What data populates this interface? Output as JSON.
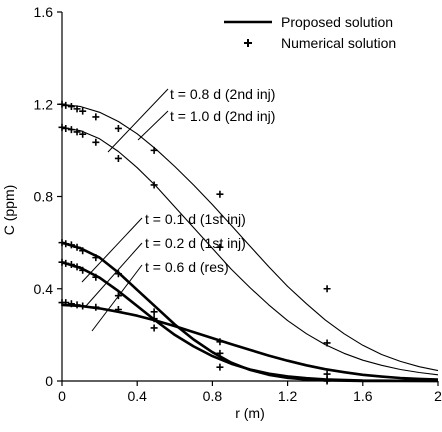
{
  "chart_data": {
    "type": "line",
    "xlabel": "r (m)",
    "ylabel": "C (ppm)",
    "xlim": [
      0,
      2
    ],
    "ylim": [
      0,
      1.6
    ],
    "xticks": [
      "0",
      "0.4",
      "0.8",
      "1.2",
      "1.6",
      "2"
    ],
    "yticks": [
      "0",
      "0.4",
      "0.8",
      "1.2",
      "1.6"
    ],
    "grid": false,
    "legend": {
      "placement": "top-right",
      "entries": [
        {
          "label": "Proposed solution",
          "marker": "line"
        },
        {
          "label": "Numerical solution",
          "marker": "plus"
        }
      ]
    },
    "series": [
      {
        "name": "t = 0.8 d (2nd inj)",
        "line_weight": "thin",
        "curve": [
          [
            0,
            1.2
          ],
          [
            0.1,
            1.19
          ],
          [
            0.2,
            1.165
          ],
          [
            0.3,
            1.125
          ],
          [
            0.4,
            1.072
          ],
          [
            0.5,
            1.005
          ],
          [
            0.6,
            0.93
          ],
          [
            0.7,
            0.85
          ],
          [
            0.8,
            0.765
          ],
          [
            0.9,
            0.675
          ],
          [
            1.0,
            0.585
          ],
          [
            1.1,
            0.495
          ],
          [
            1.2,
            0.41
          ],
          [
            1.3,
            0.335
          ],
          [
            1.4,
            0.265
          ],
          [
            1.5,
            0.205
          ],
          [
            1.6,
            0.155
          ],
          [
            1.7,
            0.115
          ],
          [
            1.8,
            0.085
          ],
          [
            1.9,
            0.062
          ],
          [
            2.0,
            0.045
          ]
        ],
        "points": [
          [
            0,
            1.2
          ],
          [
            0.02,
            1.195
          ],
          [
            0.05,
            1.19
          ],
          [
            0.08,
            1.18
          ],
          [
            0.11,
            1.17
          ],
          [
            0.18,
            1.145
          ],
          [
            0.3,
            1.095
          ],
          [
            0.49,
            1.0
          ],
          [
            0.84,
            0.81
          ],
          [
            1.41,
            0.4
          ]
        ]
      },
      {
        "name": "t = 1.0 d (2nd inj)",
        "line_weight": "thin",
        "curve": [
          [
            0,
            1.1
          ],
          [
            0.1,
            1.085
          ],
          [
            0.2,
            1.05
          ],
          [
            0.3,
            0.995
          ],
          [
            0.4,
            0.925
          ],
          [
            0.5,
            0.845
          ],
          [
            0.6,
            0.755
          ],
          [
            0.7,
            0.665
          ],
          [
            0.8,
            0.575
          ],
          [
            0.9,
            0.485
          ],
          [
            1.0,
            0.405
          ],
          [
            1.1,
            0.33
          ],
          [
            1.2,
            0.262
          ],
          [
            1.3,
            0.205
          ],
          [
            1.4,
            0.158
          ],
          [
            1.5,
            0.12
          ],
          [
            1.6,
            0.09
          ],
          [
            1.7,
            0.068
          ],
          [
            1.8,
            0.05
          ],
          [
            1.9,
            0.037
          ],
          [
            2.0,
            0.027
          ]
        ],
        "points": [
          [
            0,
            1.1
          ],
          [
            0.02,
            1.095
          ],
          [
            0.05,
            1.09
          ],
          [
            0.08,
            1.08
          ],
          [
            0.11,
            1.07
          ],
          [
            0.18,
            1.035
          ],
          [
            0.3,
            0.965
          ],
          [
            0.49,
            0.85
          ],
          [
            0.84,
            0.58
          ],
          [
            1.41,
            0.165
          ]
        ]
      },
      {
        "name": "t = 0.1 d (1st inj)",
        "line_weight": "bold",
        "curve": [
          [
            0,
            0.6
          ],
          [
            0.1,
            0.575
          ],
          [
            0.2,
            0.535
          ],
          [
            0.3,
            0.47
          ],
          [
            0.4,
            0.395
          ],
          [
            0.5,
            0.32
          ],
          [
            0.6,
            0.245
          ],
          [
            0.7,
            0.18
          ],
          [
            0.8,
            0.125
          ],
          [
            0.9,
            0.08
          ],
          [
            1.0,
            0.048
          ],
          [
            1.1,
            0.027
          ],
          [
            1.2,
            0.014
          ],
          [
            1.3,
            0.007
          ],
          [
            1.4,
            0.003
          ],
          [
            1.6,
            0.0
          ],
          [
            2.0,
            0.0
          ]
        ],
        "points": [
          [
            0,
            0.6
          ],
          [
            0.02,
            0.595
          ],
          [
            0.05,
            0.59
          ],
          [
            0.08,
            0.58
          ],
          [
            0.11,
            0.565
          ],
          [
            0.18,
            0.535
          ],
          [
            0.3,
            0.465
          ],
          [
            0.49,
            0.3
          ],
          [
            0.84,
            0.12
          ],
          [
            1.41,
            0.0
          ]
        ]
      },
      {
        "name": "t = 0.2 d (1st inj)",
        "line_weight": "bold",
        "curve": [
          [
            0,
            0.515
          ],
          [
            0.1,
            0.49
          ],
          [
            0.2,
            0.448
          ],
          [
            0.3,
            0.39
          ],
          [
            0.4,
            0.325
          ],
          [
            0.5,
            0.26
          ],
          [
            0.6,
            0.2
          ],
          [
            0.7,
            0.15
          ],
          [
            0.8,
            0.108
          ],
          [
            0.9,
            0.075
          ],
          [
            1.0,
            0.05
          ],
          [
            1.1,
            0.032
          ],
          [
            1.2,
            0.02
          ],
          [
            1.3,
            0.012
          ],
          [
            1.4,
            0.007
          ],
          [
            1.6,
            0.002
          ],
          [
            2.0,
            0.0
          ]
        ],
        "points": [
          [
            0,
            0.515
          ],
          [
            0.02,
            0.51
          ],
          [
            0.05,
            0.505
          ],
          [
            0.08,
            0.495
          ],
          [
            0.11,
            0.48
          ],
          [
            0.18,
            0.45
          ],
          [
            0.3,
            0.37
          ],
          [
            0.49,
            0.23
          ],
          [
            0.84,
            0.06
          ],
          [
            1.41,
            0.005
          ]
        ]
      },
      {
        "name": "t = 0.6 d (res)",
        "line_weight": "bold",
        "curve": [
          [
            0,
            0.33
          ],
          [
            0.1,
            0.325
          ],
          [
            0.2,
            0.315
          ],
          [
            0.3,
            0.3
          ],
          [
            0.4,
            0.283
          ],
          [
            0.5,
            0.262
          ],
          [
            0.6,
            0.238
          ],
          [
            0.7,
            0.212
          ],
          [
            0.8,
            0.186
          ],
          [
            0.9,
            0.16
          ],
          [
            1.0,
            0.135
          ],
          [
            1.1,
            0.11
          ],
          [
            1.2,
            0.088
          ],
          [
            1.3,
            0.068
          ],
          [
            1.4,
            0.051
          ],
          [
            1.5,
            0.038
          ],
          [
            1.6,
            0.027
          ],
          [
            1.7,
            0.019
          ],
          [
            1.8,
            0.013
          ],
          [
            1.9,
            0.009
          ],
          [
            2.0,
            0.006
          ]
        ],
        "points": [
          [
            0,
            0.34
          ],
          [
            0.02,
            0.34
          ],
          [
            0.05,
            0.335
          ],
          [
            0.08,
            0.33
          ],
          [
            0.11,
            0.325
          ],
          [
            0.18,
            0.32
          ],
          [
            0.3,
            0.31
          ],
          [
            0.49,
            0.27
          ],
          [
            0.84,
            0.17
          ],
          [
            1.41,
            0.03
          ]
        ]
      }
    ]
  }
}
